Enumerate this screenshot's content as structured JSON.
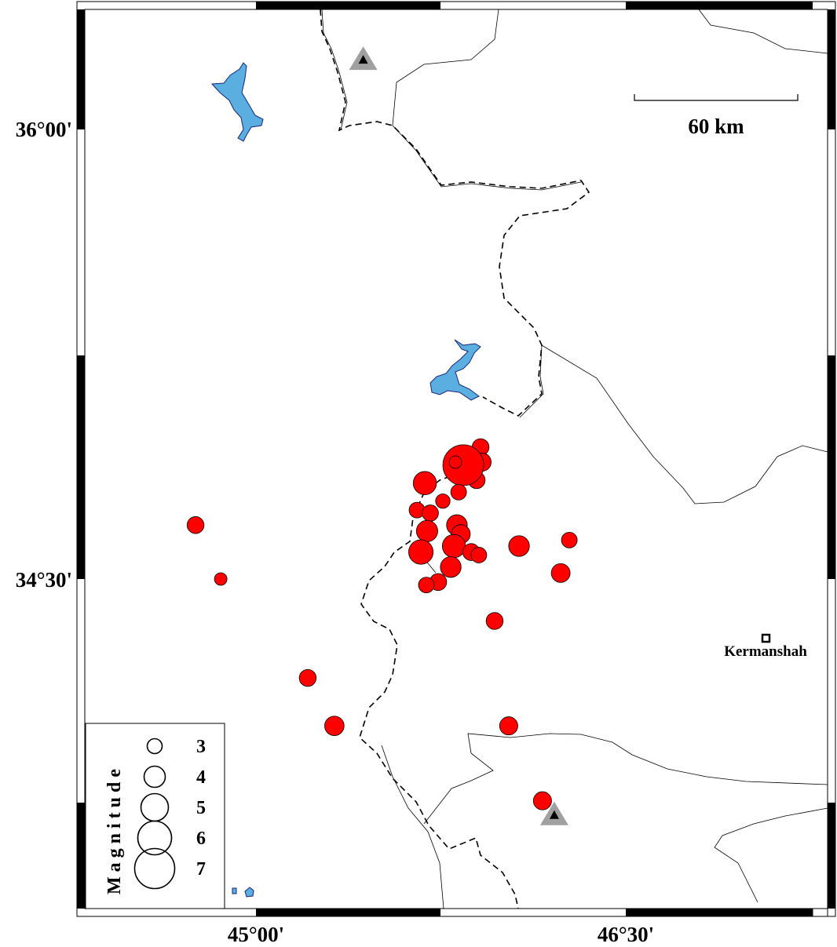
{
  "map": {
    "frame": {
      "lat_labels": [
        "36°00'",
        "34°30'"
      ],
      "lon_labels": [
        "45°00'",
        "46°30'"
      ]
    },
    "scale_bar": {
      "label": "60 km"
    },
    "city": {
      "name": "Kermanshah",
      "lon": 47.07,
      "lat": 34.32
    },
    "stations": [
      {
        "lon": 45.435,
        "lat": 36.23
      },
      {
        "lon": 46.21,
        "lat": 33.71
      }
    ],
    "legend": {
      "title": "Magnitude",
      "magnitudes": [
        "3",
        "4",
        "5",
        "6",
        "7"
      ]
    },
    "colors": {
      "event": "#ff0000",
      "water": "#5aaee0",
      "station": "#a0a0a0"
    },
    "events": [
      {
        "lon": 44.755,
        "lat": 34.68,
        "mag": 3.2
      },
      {
        "lon": 44.857,
        "lat": 34.5,
        "mag": 2.5
      },
      {
        "lon": 45.21,
        "lat": 34.17,
        "mag": 3.2
      },
      {
        "lon": 45.318,
        "lat": 34.01,
        "mag": 3.6
      },
      {
        "lon": 45.911,
        "lat": 34.94,
        "mag": 3.2
      },
      {
        "lon": 45.917,
        "lat": 34.89,
        "mag": 3.4
      },
      {
        "lon": 45.866,
        "lat": 34.87,
        "mag": 3.5
      },
      {
        "lon": 45.895,
        "lat": 34.83,
        "mag": 3.2
      },
      {
        "lon": 45.841,
        "lat": 34.88,
        "mag": 7.0
      },
      {
        "lon": 45.685,
        "lat": 34.82,
        "mag": 4.2
      },
      {
        "lon": 45.822,
        "lat": 34.79,
        "mag": 3.0
      },
      {
        "lon": 45.758,
        "lat": 34.76,
        "mag": 2.8
      },
      {
        "lon": 45.653,
        "lat": 34.73,
        "mag": 3.0
      },
      {
        "lon": 45.707,
        "lat": 34.72,
        "mag": 3.1
      },
      {
        "lon": 45.815,
        "lat": 34.68,
        "mag": 3.8
      },
      {
        "lon": 45.694,
        "lat": 34.66,
        "mag": 3.9
      },
      {
        "lon": 45.831,
        "lat": 34.65,
        "mag": 3.5
      },
      {
        "lon": 45.803,
        "lat": 34.61,
        "mag": 4.2
      },
      {
        "lon": 45.873,
        "lat": 34.59,
        "mag": 3.2
      },
      {
        "lon": 45.904,
        "lat": 34.58,
        "mag": 3.0
      },
      {
        "lon": 45.669,
        "lat": 34.59,
        "mag": 4.4
      },
      {
        "lon": 45.79,
        "lat": 34.54,
        "mag": 3.8
      },
      {
        "lon": 45.739,
        "lat": 34.49,
        "mag": 3.2
      },
      {
        "lon": 45.691,
        "lat": 34.48,
        "mag": 3.0
      },
      {
        "lon": 46.067,
        "lat": 34.61,
        "mag": 3.8
      },
      {
        "lon": 46.271,
        "lat": 34.63,
        "mag": 3.0
      },
      {
        "lon": 46.236,
        "lat": 34.52,
        "mag": 3.5
      },
      {
        "lon": 45.968,
        "lat": 34.36,
        "mag": 3.2
      },
      {
        "lon": 46.025,
        "lat": 34.01,
        "mag": 3.4
      },
      {
        "lon": 46.162,
        "lat": 33.76,
        "mag": 3.4
      },
      {
        "lon": 45.809,
        "lat": 34.89,
        "mag": 2.5
      }
    ]
  }
}
